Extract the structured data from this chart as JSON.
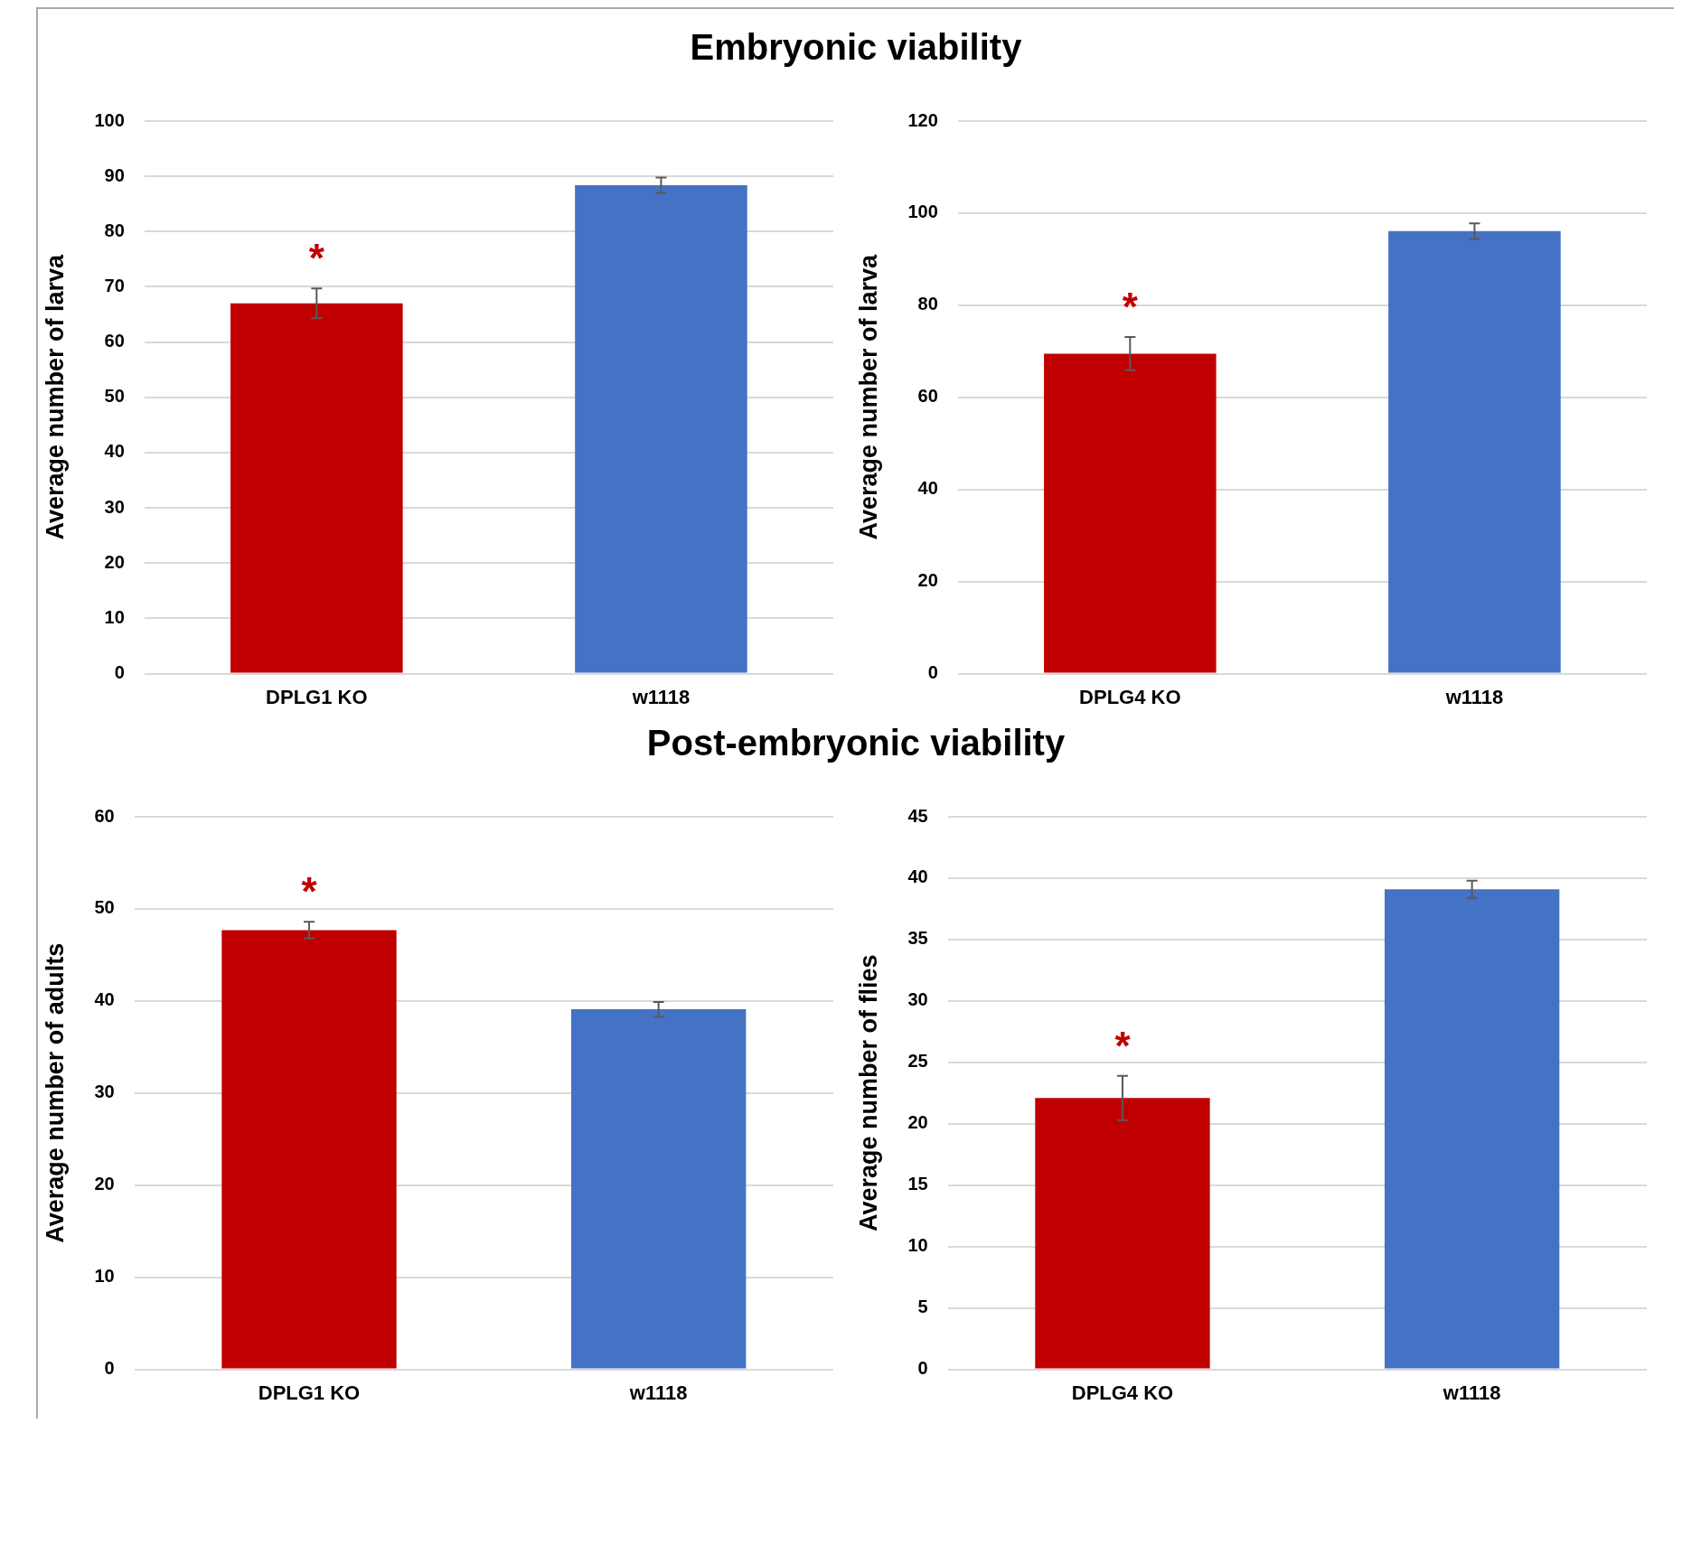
{
  "chart_data": [
    {
      "type": "bar",
      "title": "Embryonic viability",
      "ylabel": "Average number of larva",
      "categories": [
        "DPLG1 KO",
        "w1118"
      ],
      "values": [
        67,
        88.4
      ],
      "errors": [
        2.7,
        1.4
      ],
      "colors": [
        "#c00000",
        "#4472c4"
      ],
      "ylim": [
        0,
        100
      ],
      "yticks": [
        0,
        10,
        20,
        30,
        40,
        50,
        60,
        70,
        80,
        90,
        100
      ],
      "grid": "y",
      "annotations": [
        "*"
      ]
    },
    {
      "type": "bar",
      "ylabel": "Average number of larva",
      "categories": [
        "DPLG4 KO",
        "w1118"
      ],
      "values": [
        69.5,
        96.1
      ],
      "errors": [
        3.6,
        1.7
      ],
      "colors": [
        "#c00000",
        "#4472c4"
      ],
      "ylim": [
        0,
        120
      ],
      "yticks": [
        0,
        20,
        40,
        60,
        80,
        100,
        120
      ],
      "grid": "y",
      "annotations": [
        "*"
      ]
    },
    {
      "type": "bar",
      "title": "Post-embryonic viability",
      "ylabel": "Average number of adults",
      "categories": [
        "DPLG1 KO",
        "w1118"
      ],
      "values": [
        47.7,
        39.1
      ],
      "errors": [
        0.9,
        0.8
      ],
      "colors": [
        "#c00000",
        "#4472c4"
      ],
      "ylim": [
        0,
        60
      ],
      "yticks": [
        0,
        10,
        20,
        30,
        40,
        50,
        60
      ],
      "grid": "y",
      "annotations": [
        "*"
      ]
    },
    {
      "type": "bar",
      "ylabel": "Average number of flies",
      "categories": [
        "DPLG4 KO",
        "w1118"
      ],
      "values": [
        22.1,
        39.1
      ],
      "errors": [
        1.8,
        0.7
      ],
      "colors": [
        "#c00000",
        "#4472c4"
      ],
      "ylim": [
        0,
        45
      ],
      "yticks": [
        0,
        5,
        10,
        15,
        20,
        25,
        30,
        35,
        40,
        45
      ],
      "grid": "y",
      "annotations": [
        "*"
      ]
    }
  ]
}
